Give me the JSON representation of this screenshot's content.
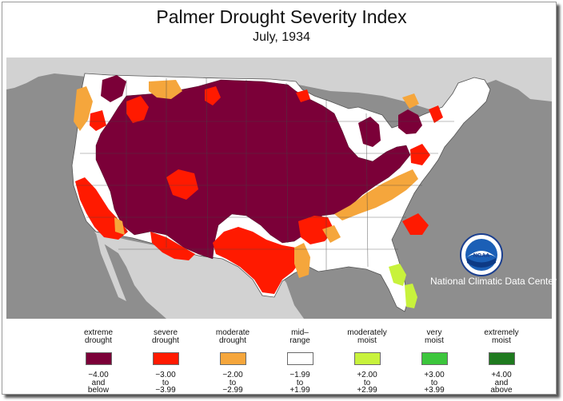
{
  "title": "Palmer Drought Severity Index",
  "subtitle": "July, 1934",
  "organization": "National Climatic Data Center",
  "logo_text": "NOAA",
  "colors": {
    "ocean": "#8e8e8e",
    "foreign_land": "#d2d2d2",
    "extreme": "#7b0038",
    "severe": "#ff1a00",
    "moderate": "#f5a63c",
    "midrange": "#ffffff",
    "moderately_moist": "#c8f23c",
    "very_moist": "#3cc63c",
    "extremely_moist": "#1f7a1f"
  },
  "legend": [
    {
      "line1": "extreme",
      "line2": "drought",
      "range1": "−4.00",
      "range2": "and",
      "range3": "below",
      "color": "#7b0038"
    },
    {
      "line1": "severe",
      "line2": "drought",
      "range1": "−3.00",
      "range2": "to",
      "range3": "−3.99",
      "color": "#ff1a00"
    },
    {
      "line1": "moderate",
      "line2": "drought",
      "range1": "−2.00",
      "range2": "to",
      "range3": "−2.99",
      "color": "#f5a63c"
    },
    {
      "line1": "mid–",
      "line2": "range",
      "range1": "−1.99",
      "range2": "to",
      "range3": "+1.99",
      "color": "#ffffff"
    },
    {
      "line1": "moderately",
      "line2": "moist",
      "range1": "+2.00",
      "range2": "to",
      "range3": "+2.99",
      "color": "#c8f23c"
    },
    {
      "line1": "very",
      "line2": "moist",
      "range1": "+3.00",
      "range2": "to",
      "range3": "+3.99",
      "color": "#3cc63c"
    },
    {
      "line1": "extremely",
      "line2": "moist",
      "range1": "+4.00",
      "range2": "and",
      "range3": "above",
      "color": "#1f7a1f"
    }
  ]
}
